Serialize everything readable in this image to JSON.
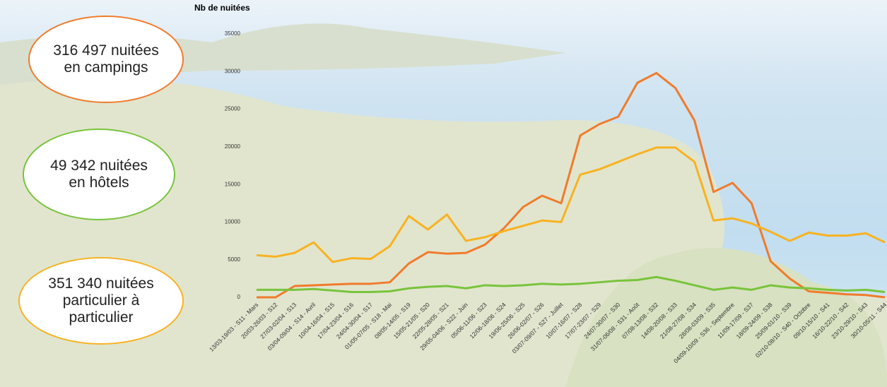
{
  "chart_data": {
    "type": "line",
    "title": "Nb de nuitées",
    "categories": [
      "13/03-19/03 - S11 - Mars",
      "20/03-26/03 - S12",
      "27/03-02/04 - S13",
      "03/04-09/04 - S14 - Avril",
      "10/04-16/04 - S15",
      "17/04-23/04 - S16",
      "24/04-30/04 - S17",
      "01/05-07/05 - S18 - Mai",
      "08/05-14/05 - S19",
      "15/05-21/05 - S20",
      "22/05-28/05 - S21",
      "29/05-04/06 - S22 - Juin",
      "05/06-11/06 - S23",
      "12/06-18/06 - S24",
      "19/06-25/06 - S25",
      "26/06-02/07 - S26",
      "03/07-09/07 - S27 - Juillet",
      "10/07-16/07 - S28",
      "17/07-23/07 - S29",
      "24/07-30/07 - S30",
      "31/07-06/08 - S31 - Août",
      "07/08-13/08 - S32",
      "14/08-20/08 - S33",
      "21/08-27/08 - S34",
      "28/08-03/09 - S35",
      "04/09-10/09 - S36 - Septembre",
      "11/09-17/09 - S37",
      "18/09-24/09 - S38",
      "25/09-01/10 - S39",
      "02/10-08/10 - S40 - Octobre",
      "09/10-15/10 - S41",
      "16/10-22/10 - S42",
      "23/10-29/10 - S43",
      "30/10-05/11 - S44"
    ],
    "series": [
      {
        "color": "#f07b2c",
        "values": [
          0,
          0,
          1500,
          1600,
          1700,
          1800,
          1800,
          2000,
          4500,
          6000,
          5800,
          5900,
          7000,
          9200,
          12000,
          13500,
          12500,
          21500,
          23000,
          24000,
          28500,
          29800,
          27800,
          23500,
          14000,
          15200,
          12500,
          4800,
          2500,
          800,
          600,
          400,
          300,
          0
        ]
      },
      {
        "color": "#f8b221",
        "values": [
          5600,
          5400,
          5900,
          7300,
          4700,
          5200,
          5100,
          6800,
          10800,
          9000,
          11000,
          7500,
          8000,
          8800,
          9500,
          10200,
          10000,
          16300,
          17000,
          18000,
          19000,
          19900,
          19900,
          18000,
          10200,
          10500,
          9800,
          8700,
          7500,
          8600,
          8200,
          8200,
          8500,
          7300
        ]
      },
      {
        "color": "#78c43b",
        "values": [
          1000,
          1000,
          1000,
          1100,
          900,
          700,
          700,
          800,
          1200,
          1400,
          1500,
          1200,
          1600,
          1500,
          1600,
          1800,
          1700,
          1800,
          2000,
          2200,
          2300,
          2700,
          2200,
          1600,
          1000,
          1300,
          1000,
          1600,
          1300,
          1200,
          1000,
          900,
          1000,
          700
        ]
      }
    ],
    "ylim": [
      0,
      35000
    ],
    "yticks": [
      0,
      5000,
      10000,
      15000,
      20000,
      25000,
      30000,
      35000
    ],
    "annotations": [
      {
        "text": "316 497 nuitées en campings",
        "color": "#f07b2c"
      },
      {
        "text": "49 342 nuitées en hôtels",
        "color": "#78c43b"
      },
      {
        "text": "351 340 nuitées particulier à particulier",
        "color": "#f8b221"
      }
    ]
  }
}
